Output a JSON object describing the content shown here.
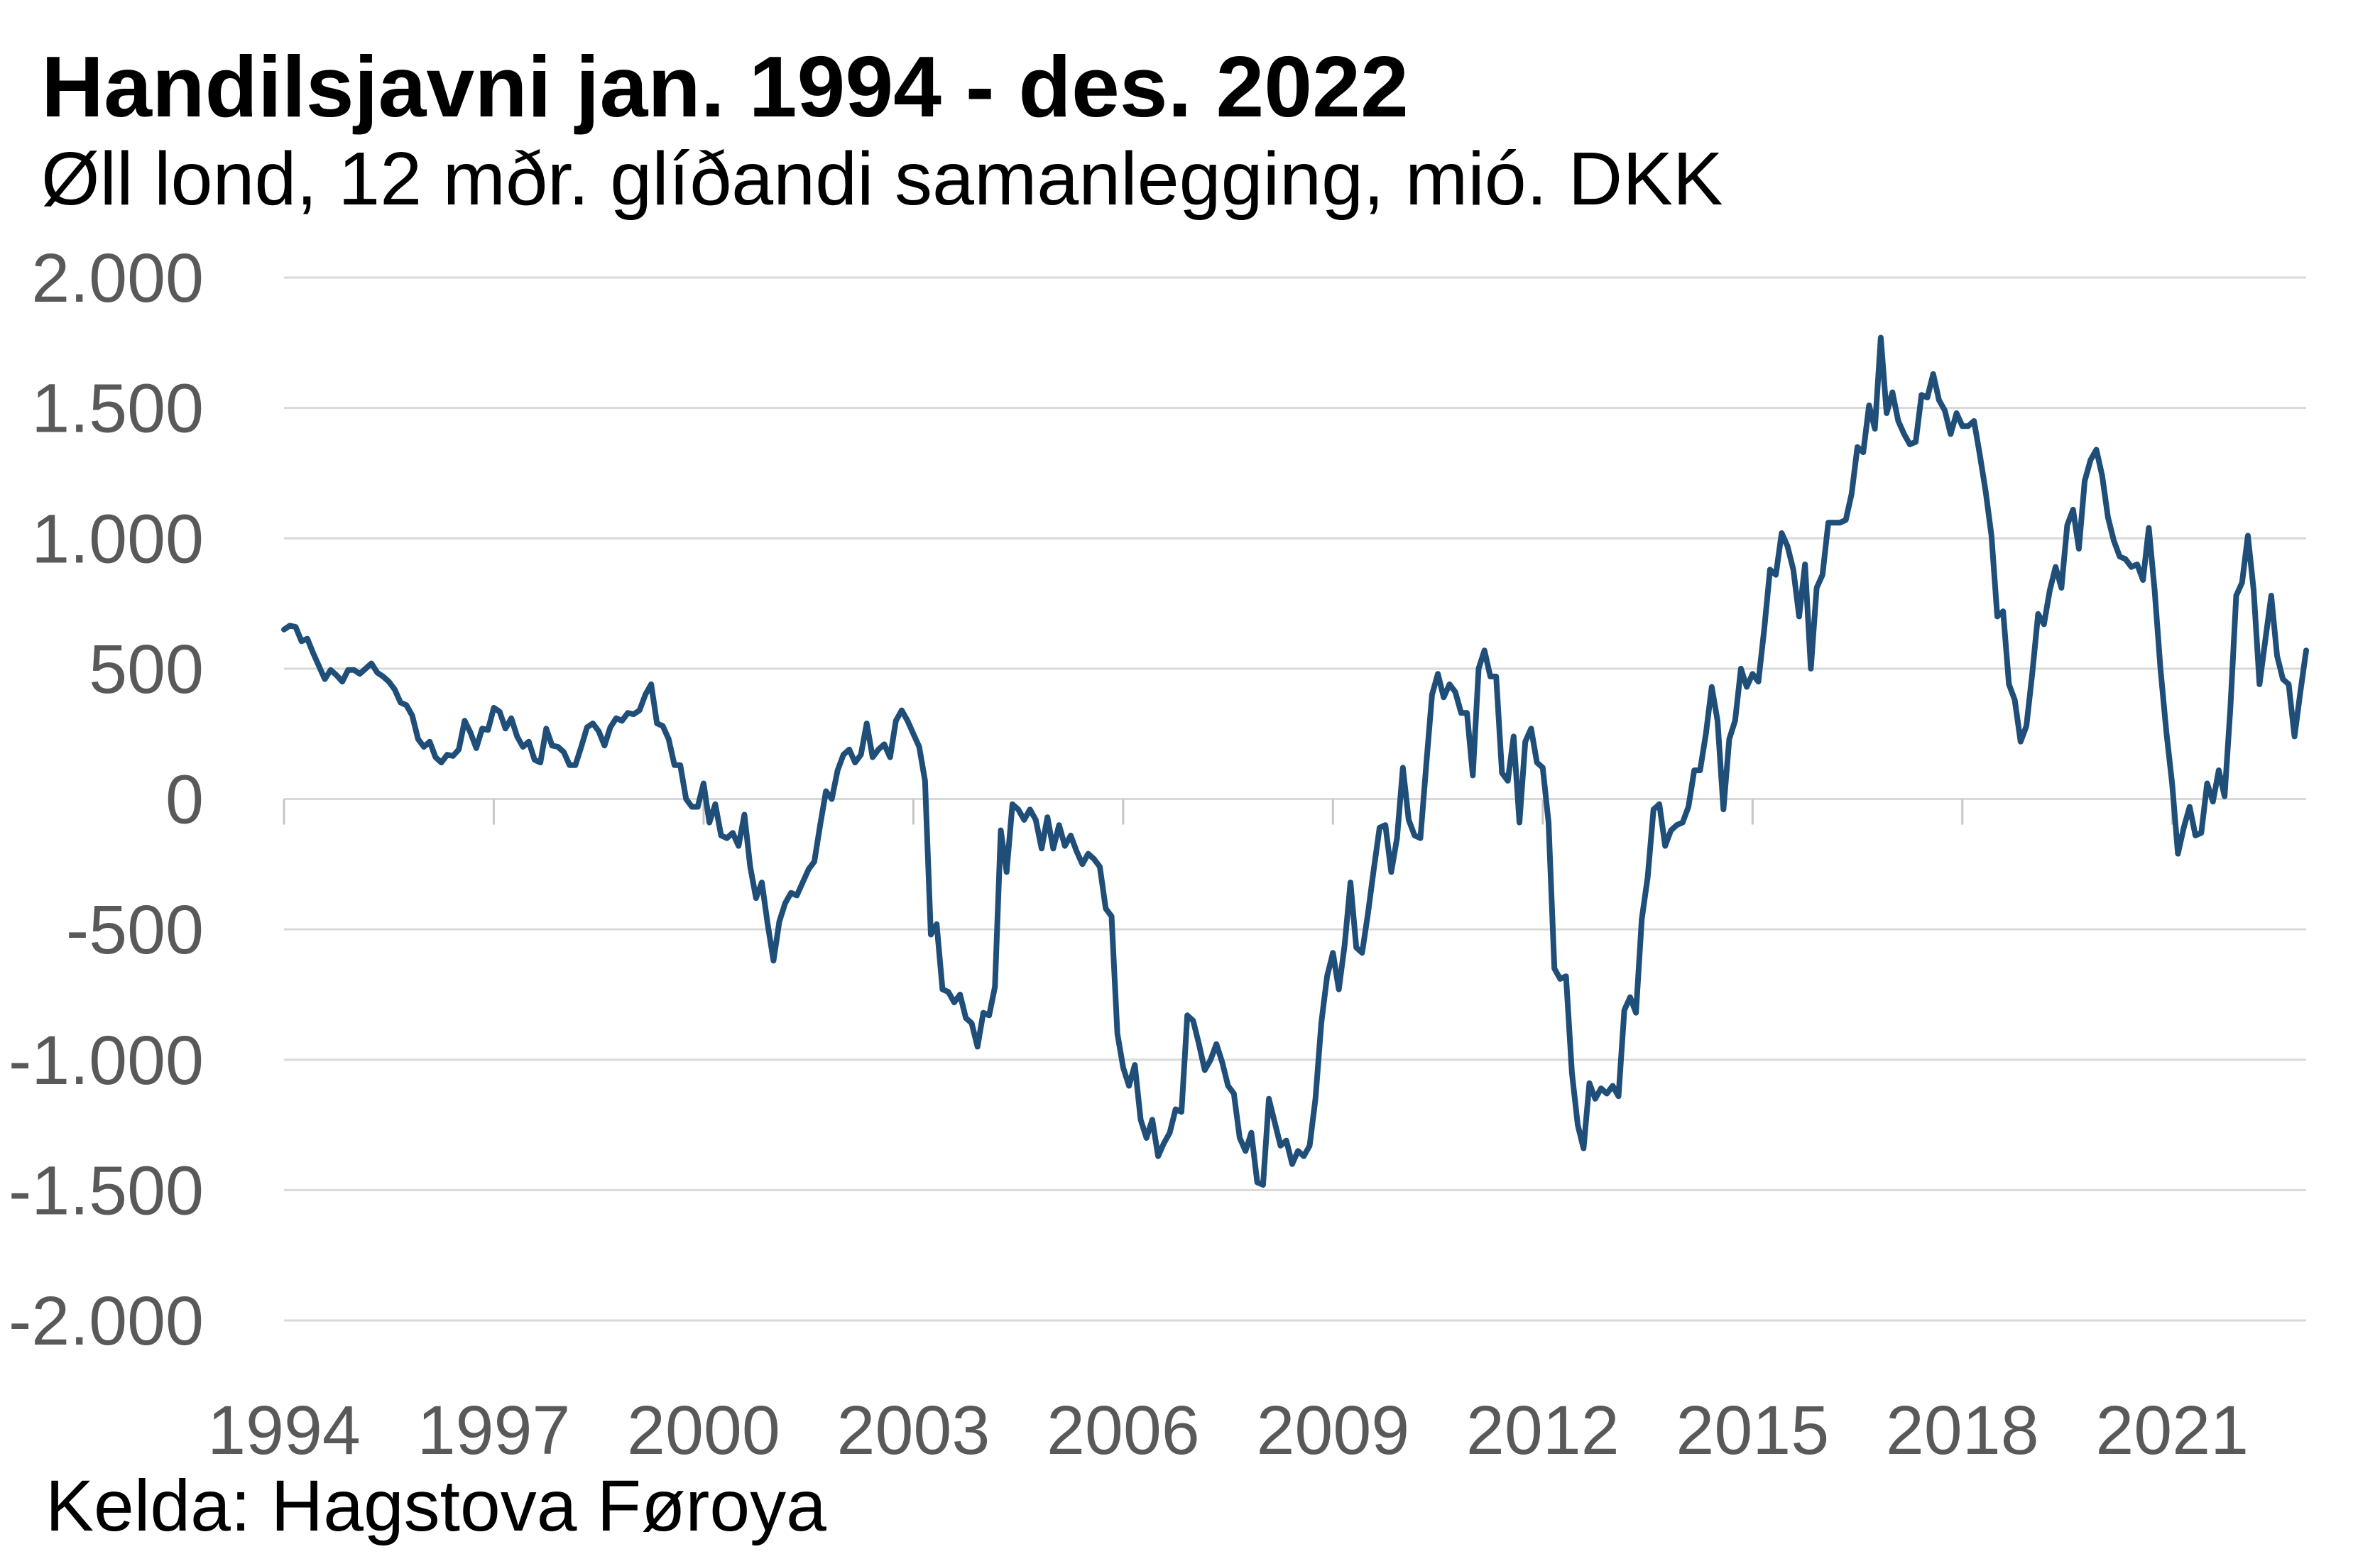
{
  "chart_data": {
    "type": "line",
    "title": "Handilsjavni jan. 1994 - des. 2022",
    "subtitle": "Øll lond, 12 mðr. glíðandi samanlegging, mió. DKK",
    "source": "Kelda: Hagstova Føroya",
    "xlim": [
      "1994-01",
      "2022-12"
    ],
    "ylim": [
      -2000,
      2000
    ],
    "grid": "horizontal",
    "line_color": "#1f4e79",
    "grid_color": "#d9d9d9",
    "tick_label_color": "#595959",
    "y_ticks": [
      {
        "value": 2000,
        "label": "2.000"
      },
      {
        "value": 1500,
        "label": "1.500"
      },
      {
        "value": 1000,
        "label": "1.000"
      },
      {
        "value": 500,
        "label": "500"
      },
      {
        "value": 0,
        "label": "0"
      },
      {
        "value": -500,
        "label": "-500"
      },
      {
        "value": -1000,
        "label": "-1.000"
      },
      {
        "value": -1500,
        "label": "-1.500"
      },
      {
        "value": -2000,
        "label": "-2.000"
      }
    ],
    "x_ticks": [
      "1994",
      "1997",
      "2000",
      "2003",
      "2006",
      "2009",
      "2012",
      "2015",
      "2018",
      "2021"
    ],
    "x": [
      "1994-01",
      "1994-02",
      "1994-03",
      "1994-04",
      "1994-05",
      "1994-06",
      "1994-07",
      "1994-08",
      "1994-09",
      "1994-10",
      "1994-11",
      "1994-12",
      "1995-01",
      "1995-02",
      "1995-03",
      "1995-04",
      "1995-05",
      "1995-06",
      "1995-07",
      "1995-08",
      "1995-09",
      "1995-10",
      "1995-11",
      "1995-12",
      "1996-01",
      "1996-02",
      "1996-03",
      "1996-04",
      "1996-05",
      "1996-06",
      "1996-07",
      "1996-08",
      "1996-09",
      "1996-10",
      "1996-11",
      "1996-12",
      "1997-01",
      "1997-02",
      "1997-03",
      "1997-04",
      "1997-05",
      "1997-06",
      "1997-07",
      "1997-08",
      "1997-09",
      "1997-10",
      "1997-11",
      "1997-12",
      "1998-01",
      "1998-02",
      "1998-03",
      "1998-04",
      "1998-05",
      "1998-06",
      "1998-07",
      "1998-08",
      "1998-09",
      "1998-10",
      "1998-11",
      "1998-12",
      "1999-01",
      "1999-02",
      "1999-03",
      "1999-04",
      "1999-05",
      "1999-06",
      "1999-07",
      "1999-08",
      "1999-09",
      "1999-10",
      "1999-11",
      "1999-12",
      "2000-01",
      "2000-02",
      "2000-03",
      "2000-04",
      "2000-05",
      "2000-06",
      "2000-07",
      "2000-08",
      "2000-09",
      "2000-10",
      "2000-11",
      "2000-12",
      "2001-01",
      "2001-02",
      "2001-03",
      "2001-04",
      "2001-05",
      "2001-06",
      "2001-07",
      "2001-08",
      "2001-09",
      "2001-10",
      "2001-11",
      "2001-12",
      "2002-01",
      "2002-02",
      "2002-03",
      "2002-04",
      "2002-05",
      "2002-06",
      "2002-07",
      "2002-08",
      "2002-09",
      "2002-10",
      "2002-11",
      "2002-12",
      "2003-01",
      "2003-02",
      "2003-03",
      "2003-04",
      "2003-05",
      "2003-06",
      "2003-07",
      "2003-08",
      "2003-09",
      "2003-10",
      "2003-11",
      "2003-12",
      "2004-01",
      "2004-02",
      "2004-03",
      "2004-04",
      "2004-05",
      "2004-06",
      "2004-07",
      "2004-08",
      "2004-09",
      "2004-10",
      "2004-11",
      "2004-12",
      "2005-01",
      "2005-02",
      "2005-03",
      "2005-04",
      "2005-05",
      "2005-06",
      "2005-07",
      "2005-08",
      "2005-09",
      "2005-10",
      "2005-11",
      "2005-12",
      "2006-01",
      "2006-02",
      "2006-03",
      "2006-04",
      "2006-05",
      "2006-06",
      "2006-07",
      "2006-08",
      "2006-09",
      "2006-10",
      "2006-11",
      "2006-12",
      "2007-01",
      "2007-02",
      "2007-03",
      "2007-04",
      "2007-05",
      "2007-06",
      "2007-07",
      "2007-08",
      "2007-09",
      "2007-10",
      "2007-11",
      "2007-12",
      "2008-01",
      "2008-02",
      "2008-03",
      "2008-04",
      "2008-05",
      "2008-06",
      "2008-07",
      "2008-08",
      "2008-09",
      "2008-10",
      "2008-11",
      "2008-12",
      "2009-01",
      "2009-02",
      "2009-03",
      "2009-04",
      "2009-05",
      "2009-06",
      "2009-07",
      "2009-08",
      "2009-09",
      "2009-10",
      "2009-11",
      "2009-12",
      "2010-01",
      "2010-02",
      "2010-03",
      "2010-04",
      "2010-05",
      "2010-06",
      "2010-07",
      "2010-08",
      "2010-09",
      "2010-10",
      "2010-11",
      "2010-12",
      "2011-01",
      "2011-02",
      "2011-03",
      "2011-04",
      "2011-05",
      "2011-06",
      "2011-07",
      "2011-08",
      "2011-09",
      "2011-10",
      "2011-11",
      "2011-12",
      "2012-01",
      "2012-02",
      "2012-03",
      "2012-04",
      "2012-05",
      "2012-06",
      "2012-07",
      "2012-08",
      "2012-09",
      "2012-10",
      "2012-11",
      "2012-12",
      "2013-01",
      "2013-02",
      "2013-03",
      "2013-04",
      "2013-05",
      "2013-06",
      "2013-07",
      "2013-08",
      "2013-09",
      "2013-10",
      "2013-11",
      "2013-12",
      "2014-01",
      "2014-02",
      "2014-03",
      "2014-04",
      "2014-05",
      "2014-06",
      "2014-07",
      "2014-08",
      "2014-09",
      "2014-10",
      "2014-11",
      "2014-12",
      "2015-01",
      "2015-02",
      "2015-03",
      "2015-04",
      "2015-05",
      "2015-06",
      "2015-07",
      "2015-08",
      "2015-09",
      "2015-10",
      "2015-11",
      "2015-12",
      "2016-01",
      "2016-02",
      "2016-03",
      "2016-04",
      "2016-05",
      "2016-06",
      "2016-07",
      "2016-08",
      "2016-09",
      "2016-10",
      "2016-11",
      "2016-12",
      "2017-01",
      "2017-02",
      "2017-03",
      "2017-04",
      "2017-05",
      "2017-06",
      "2017-07",
      "2017-08",
      "2017-09",
      "2017-10",
      "2017-11",
      "2017-12",
      "2018-01",
      "2018-02",
      "2018-03",
      "2018-04",
      "2018-05",
      "2018-06",
      "2018-07",
      "2018-08",
      "2018-09",
      "2018-10",
      "2018-11",
      "2018-12",
      "2019-01",
      "2019-02",
      "2019-03",
      "2019-04",
      "2019-05",
      "2019-06",
      "2019-07",
      "2019-08",
      "2019-09",
      "2019-10",
      "2019-11",
      "2019-12",
      "2020-01",
      "2020-02",
      "2020-03",
      "2020-04",
      "2020-05",
      "2020-06",
      "2020-07",
      "2020-08",
      "2020-09",
      "2020-10",
      "2020-11",
      "2020-12",
      "2021-01",
      "2021-02",
      "2021-03",
      "2021-04",
      "2021-05",
      "2021-06",
      "2021-07",
      "2021-08",
      "2021-09",
      "2021-10",
      "2021-11",
      "2021-12",
      "2022-01",
      "2022-02",
      "2022-03",
      "2022-04",
      "2022-05",
      "2022-06",
      "2022-07",
      "2022-08",
      "2022-09",
      "2022-10",
      "2022-11",
      "2022-12"
    ],
    "y": [
      650,
      665,
      660,
      605,
      615,
      560,
      510,
      460,
      495,
      475,
      450,
      495,
      495,
      480,
      500,
      520,
      485,
      470,
      450,
      420,
      370,
      360,
      320,
      230,
      200,
      220,
      160,
      140,
      170,
      165,
      190,
      300,
      255,
      195,
      270,
      265,
      350,
      335,
      270,
      310,
      240,
      200,
      220,
      150,
      140,
      270,
      205,
      200,
      180,
      130,
      130,
      200,
      275,
      290,
      260,
      205,
      275,
      310,
      300,
      330,
      325,
      340,
      400,
      440,
      290,
      280,
      230,
      130,
      130,
      0,
      -30,
      -30,
      60,
      -90,
      -20,
      -140,
      -150,
      -130,
      -180,
      -60,
      -260,
      -380,
      -320,
      -480,
      -620,
      -470,
      -400,
      -360,
      -370,
      -320,
      -270,
      -240,
      -100,
      30,
      0,
      110,
      170,
      190,
      140,
      170,
      290,
      160,
      190,
      210,
      160,
      300,
      340,
      300,
      250,
      200,
      70,
      -520,
      -480,
      -730,
      -740,
      -780,
      -750,
      -840,
      -860,
      -950,
      -820,
      -830,
      -720,
      -120,
      -280,
      -20,
      -40,
      -80,
      -40,
      -80,
      -190,
      -70,
      -190,
      -100,
      -180,
      -140,
      -200,
      -250,
      -210,
      -230,
      -260,
      -420,
      -450,
      -900,
      -1030,
      -1100,
      -1020,
      -1230,
      -1300,
      -1230,
      -1370,
      -1320,
      -1280,
      -1190,
      -1200,
      -830,
      -850,
      -940,
      -1040,
      -1000,
      -940,
      -1010,
      -1100,
      -1130,
      -1300,
      -1350,
      -1280,
      -1470,
      -1480,
      -1150,
      -1240,
      -1330,
      -1310,
      -1400,
      -1350,
      -1370,
      -1330,
      -1150,
      -860,
      -680,
      -590,
      -730,
      -560,
      -320,
      -570,
      -590,
      -440,
      -270,
      -110,
      -100,
      -280,
      -150,
      120,
      -80,
      -140,
      -150,
      130,
      400,
      480,
      390,
      440,
      410,
      330,
      330,
      90,
      500,
      570,
      470,
      470,
      100,
      70,
      240,
      -90,
      220,
      270,
      140,
      120,
      -90,
      -650,
      -690,
      -680,
      -1050,
      -1250,
      -1340,
      -1090,
      -1150,
      -1110,
      -1130,
      -1100,
      -1140,
      -810,
      -760,
      -820,
      -460,
      -300,
      -40,
      -20,
      -180,
      -120,
      -100,
      -90,
      -30,
      110,
      110,
      250,
      430,
      300,
      -40,
      230,
      300,
      500,
      430,
      480,
      450,
      650,
      880,
      860,
      1020,
      970,
      880,
      700,
      900,
      500,
      810,
      860,
      1060,
      1060,
      1060,
      1070,
      1170,
      1350,
      1330,
      1510,
      1420,
      1770,
      1480,
      1560,
      1450,
      1400,
      1360,
      1370,
      1550,
      1540,
      1630,
      1530,
      1490,
      1400,
      1480,
      1430,
      1430,
      1450,
      1320,
      1180,
      1010,
      700,
      720,
      440,
      380,
      220,
      280,
      480,
      710,
      670,
      800,
      890,
      810,
      1050,
      1110,
      960,
      1220,
      1300,
      1340,
      1240,
      1080,
      990,
      930,
      920,
      890,
      900,
      840,
      1040,
      800,
      500,
      260,
      60,
      -210,
      -110,
      -30,
      -140,
      -130,
      60,
      -10,
      110,
      10,
      350,
      780,
      830,
      1010,
      800,
      440,
      610,
      780,
      550,
      460,
      440,
      240,
      410,
      570
    ]
  }
}
